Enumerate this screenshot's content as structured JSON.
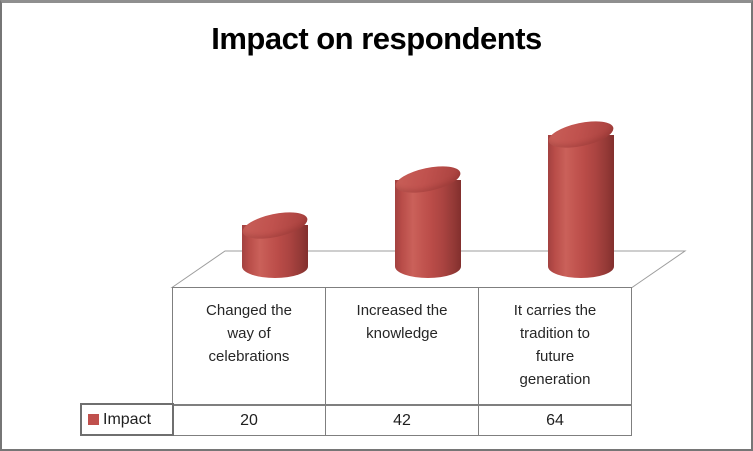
{
  "chart_data": {
    "type": "bar",
    "shape": "cylinder-3d",
    "title": "Impact on respondents",
    "categories": [
      "Changed the way of celebrations",
      "Increased the knowledge",
      "It carries the tradition to future generation"
    ],
    "series": [
      {
        "name": "Impact",
        "color": "#c0504d",
        "values": [
          20,
          42,
          64
        ]
      }
    ],
    "xlabel": "",
    "ylabel": "",
    "gridlines": false,
    "legend_position": "bottom-left",
    "data_table_shown": true
  },
  "data_table": {
    "legend_label": "Impact",
    "category_cells": [
      "Changed the\nway of\ncelebrations",
      "Increased the\nknowledge",
      "It carries the\ntradition to\nfuture\ngeneration"
    ],
    "value_cells": [
      "20",
      "42",
      "64"
    ]
  },
  "colors": {
    "bar_fill": "#c0504d",
    "bar_dark_edge": "#822f2d",
    "table_border": "#7f7f7f",
    "floor_line": "#9d9d9d",
    "frame_border": "#767676"
  }
}
